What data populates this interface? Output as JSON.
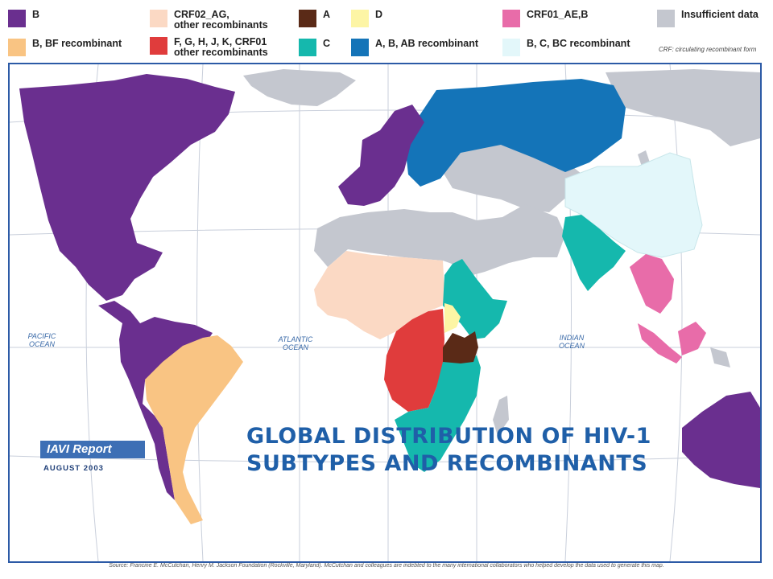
{
  "legend": [
    {
      "label": "B",
      "color": "#6a2f8f"
    },
    {
      "label": "B, BF recombinant",
      "color": "#f9c483"
    },
    {
      "label": "CRF02_AG,\nother recombinants",
      "color": "#fbd9c4"
    },
    {
      "label": "F, G, H, J, K, CRF01\nother recombinants",
      "color": "#e03c3c"
    },
    {
      "label": "A",
      "color": "#5a2a17"
    },
    {
      "label": "C",
      "color": "#15b8ad"
    },
    {
      "label": "D",
      "color": "#fdf5a5"
    },
    {
      "label": "A, B, AB recombinant",
      "color": "#1474b8"
    },
    {
      "label": "CRF01_AE,B",
      "color": "#e86ca9"
    },
    {
      "label": "B, C, BC recombinant",
      "color": "#e3f7fa"
    },
    {
      "label": "Insufficient data",
      "color": "#c4c7cf"
    }
  ],
  "crf_note": "CRF: circulating recombinant form",
  "oceans": {
    "pacific": "PACIFIC\nOCEAN",
    "atlantic": "ATLANTIC\nOCEAN",
    "indian": "INDIAN\nOCEAN"
  },
  "title_line1": "GLOBAL DISTRIBUTION OF HIV-1",
  "title_line2": "SUBTYPES AND RECOMBINANTS",
  "publication": "IAVI Report",
  "issue_date": "AUGUST 2003",
  "source": "Source: Francine E. McCutchan, Henry M. Jackson Foundation (Rockville, Maryland). McCutchan and colleagues are indebted to the many international collaborators who helped develop the data used to generate this map."
}
